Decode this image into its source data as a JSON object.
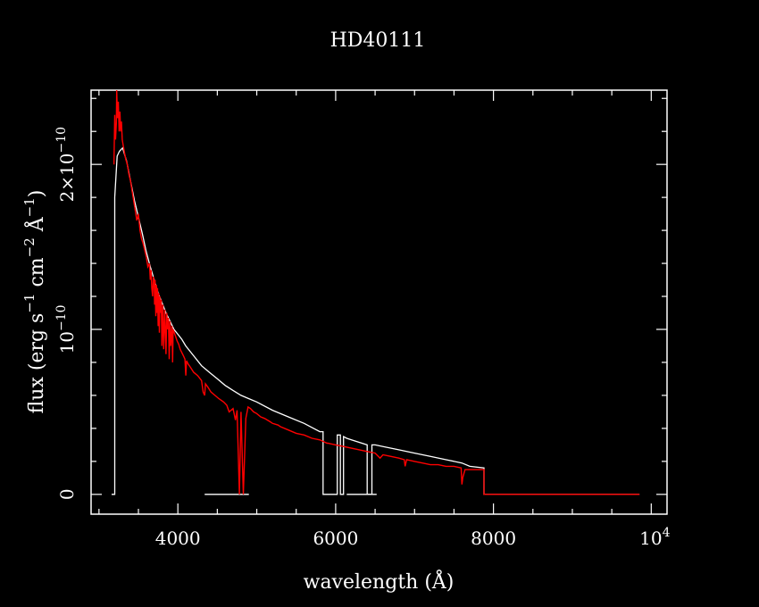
{
  "chart_data": {
    "type": "line",
    "title": "HD40111",
    "xlabel": "wavelength (Å)",
    "ylabel": {
      "prefix": "flux (erg s",
      "e1": "−1",
      "mid": " cm",
      "e2": "−2",
      "unit": " Å",
      "e3": "−1",
      "suffix": ")"
    },
    "xlim": [
      2900,
      10200
    ],
    "ylim": [
      -1.2e-11,
      2.45e-10
    ],
    "x_ticks": [
      {
        "value": 4000,
        "label": "4000"
      },
      {
        "value": 6000,
        "label": "6000"
      },
      {
        "value": 8000,
        "label": "8000"
      }
    ],
    "x_tick_last": {
      "value": 10000,
      "base": "10",
      "exp": "4"
    },
    "y_ticks": [
      {
        "value": 0,
        "label": "0"
      },
      {
        "value": 1e-10,
        "base": "10",
        "exp": "−10"
      },
      {
        "value": 2e-10,
        "base": "2×10",
        "exp": "−10"
      }
    ],
    "colors": {
      "background": "#000000",
      "frame": "#ffffff",
      "observed": "#ffffff",
      "model": "#ff0000"
    },
    "series": [
      {
        "id": "observed",
        "color": "#ffffff",
        "x": [
          3160,
          3200,
          3200,
          3230,
          3260,
          3300,
          3350,
          3400,
          3450,
          3500,
          3550,
          3600,
          3650,
          3700,
          3750,
          3800,
          3850,
          3900,
          3950,
          4000,
          4050,
          4100,
          4150,
          4200,
          4300,
          4400,
          4500,
          4600,
          4700,
          4800,
          4900,
          5000,
          5200,
          5400,
          5600,
          5800,
          5840,
          5840,
          6020,
          6020,
          6060,
          6060,
          6100,
          6100,
          6140,
          6200,
          6400,
          6400,
          6460,
          6460,
          6500,
          6600,
          6800,
          7000,
          7200,
          7400,
          7600,
          7700,
          7880,
          7880,
          9850
        ],
        "y": [
          0,
          0,
          1.8e-10,
          2.05e-10,
          2.08e-10,
          2.1e-10,
          2.02e-10,
          1.9e-10,
          1.78e-10,
          1.68e-10,
          1.58e-10,
          1.47e-10,
          1.38e-10,
          1.3e-10,
          1.22e-10,
          1.16e-10,
          1.1e-10,
          1.05e-10,
          1e-10,
          9.7e-11,
          9.4e-11,
          9e-11,
          8.7e-11,
          8.4e-11,
          7.8e-11,
          7.4e-11,
          7e-11,
          6.6e-11,
          6.3e-11,
          6e-11,
          5.8e-11,
          5.6e-11,
          5.1e-11,
          4.7e-11,
          4.3e-11,
          3.8e-11,
          3.8e-11,
          0,
          0,
          3.6e-11,
          3.6e-11,
          0,
          0,
          3.5e-11,
          3.4e-11,
          3.3e-11,
          3e-11,
          0,
          0,
          3e-11,
          3e-11,
          2.9e-11,
          2.7e-11,
          2.5e-11,
          2.3e-11,
          2.1e-11,
          1.9e-11,
          1.7e-11,
          1.6e-11,
          0,
          0
        ]
      },
      {
        "id": "observed-blue-fragment",
        "color": "#ffffff",
        "x": [
          4340,
          4900
        ],
        "y": [
          0,
          0
        ]
      },
      {
        "id": "observed-red-fragment",
        "color": "#ffffff",
        "x": [
          6140,
          6520
        ],
        "y": [
          0,
          0
        ]
      },
      {
        "id": "model",
        "color": "#ff0000",
        "x": [
          3190,
          3200,
          3210,
          3220,
          3225,
          3235,
          3245,
          3255,
          3265,
          3275,
          3285,
          3295,
          3305,
          3320,
          3340,
          3360,
          3380,
          3400,
          3420,
          3440,
          3460,
          3480,
          3500,
          3520,
          3540,
          3560,
          3580,
          3600,
          3620,
          3640,
          3650,
          3660,
          3670,
          3680,
          3690,
          3700,
          3705,
          3712,
          3720,
          3728,
          3735,
          3742,
          3750,
          3758,
          3766,
          3772,
          3780,
          3790,
          3798,
          3810,
          3820,
          3835,
          3850,
          3860,
          3870,
          3880,
          3890,
          3900,
          3910,
          3925,
          3933,
          3940,
          3955,
          3970,
          3990,
          4010,
          4030,
          4050,
          4070,
          4090,
          4101,
          4110,
          4130,
          4160,
          4200,
          4250,
          4300,
          4320,
          4340,
          4350,
          4380,
          4420,
          4470,
          4520,
          4580,
          4620,
          4650,
          4700,
          4730,
          4750,
          4780,
          4800,
          4830,
          4861,
          4890,
          4920,
          4960,
          5000,
          5050,
          5100,
          5170,
          5200,
          5270,
          5300,
          5400,
          5500,
          5600,
          5700,
          5800,
          5890,
          5900,
          6000,
          6100,
          6200,
          6300,
          6400,
          6500,
          6563,
          6600,
          6700,
          6800,
          6870,
          6880,
          6900,
          7000,
          7100,
          7200,
          7300,
          7400,
          7500,
          7590,
          7600,
          7610,
          7640,
          7700,
          7800,
          7880,
          7880,
          9850
        ],
        "y": [
          2e-10,
          2.3e-10,
          2.15e-10,
          2.25e-10,
          2.45e-10,
          2.28e-10,
          2.38e-10,
          2.2e-10,
          2.32e-10,
          2.2e-10,
          2.26e-10,
          2.15e-10,
          2.12e-10,
          2.08e-10,
          2.03e-10,
          2e-10,
          1.94e-10,
          1.9e-10,
          1.84e-10,
          1.78e-10,
          1.72e-10,
          1.66e-10,
          1.7e-10,
          1.6e-10,
          1.55e-10,
          1.52e-10,
          1.48e-10,
          1.44e-10,
          1.38e-10,
          1.4e-10,
          1.3e-10,
          1.36e-10,
          1.25e-10,
          1.2e-10,
          1.32e-10,
          1.28e-10,
          1.15e-10,
          1.3e-10,
          1.08e-10,
          1.27e-10,
          1.1e-10,
          1.25e-10,
          1.02e-10,
          1.22e-10,
          9.8e-11,
          1.2e-10,
          1.1e-10,
          1.18e-10,
          9e-11,
          1.15e-10,
          8.8e-11,
          1.12e-10,
          8.5e-11,
          1.1e-10,
          1e-10,
          1.07e-10,
          8.2e-11,
          1.05e-10,
          9e-11,
          1.02e-10,
          8e-11,
          1e-10,
          9.8e-11,
          9.6e-11,
          9.3e-11,
          9.1e-11,
          8.8e-11,
          8.6e-11,
          8.4e-11,
          8.2e-11,
          7.2e-11,
          8.1e-11,
          7.9e-11,
          7.7e-11,
          7.4e-11,
          7.2e-11,
          6.9e-11,
          6.2e-11,
          6e-11,
          6.7e-11,
          6.5e-11,
          6.2e-11,
          6e-11,
          5.8e-11,
          5.6e-11,
          5.4e-11,
          5e-11,
          5.2e-11,
          4.5e-11,
          5.1e-11,
          0,
          5e-11,
          0,
          4.6e-11,
          5.3e-11,
          5.2e-11,
          5e-11,
          4.9e-11,
          4.7e-11,
          4.6e-11,
          4.4e-11,
          4.3e-11,
          4.2e-11,
          4.1e-11,
          3.9e-11,
          3.7e-11,
          3.6e-11,
          3.4e-11,
          3.3e-11,
          3.1e-11,
          3.1e-11,
          3e-11,
          2.9e-11,
          2.8e-11,
          2.7e-11,
          2.6e-11,
          2.5e-11,
          2.2e-11,
          2.4e-11,
          2.3e-11,
          2.2e-11,
          2.1e-11,
          1.7e-11,
          2.1e-11,
          2e-11,
          1.9e-11,
          1.8e-11,
          1.8e-11,
          1.7e-11,
          1.7e-11,
          1.6e-11,
          6e-12,
          1e-11,
          1.5e-11,
          1.5e-11,
          1.5e-11,
          1.5e-11,
          0,
          0
        ]
      }
    ]
  }
}
